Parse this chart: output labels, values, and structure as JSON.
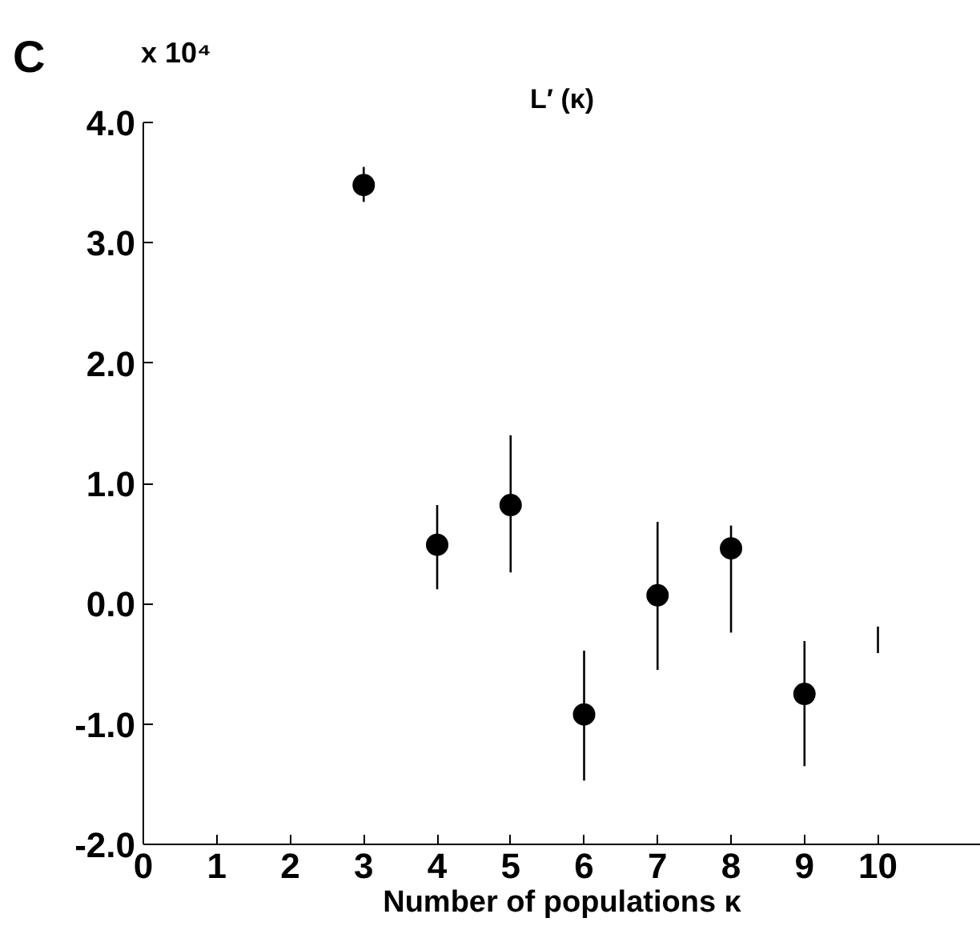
{
  "chart_data": {
    "type": "scatter",
    "title": "L′ (κ)",
    "xlabel": "Number of populations κ",
    "annotations": [
      "C",
      "x 10⁴"
    ],
    "series": [
      {
        "color": "#000000",
        "x": [
          3,
          4,
          5,
          6,
          7,
          8,
          9
        ],
        "values": [
          3.48,
          0.49,
          0.82,
          -0.92,
          0.07,
          0.46,
          -0.75
        ],
        "errors": [
          [
            3.34,
            3.63
          ],
          [
            0.12,
            0.82
          ],
          [
            0.26,
            1.4
          ],
          [
            -1.47,
            -0.39
          ],
          [
            -0.55,
            0.68
          ],
          [
            -0.24,
            0.65
          ],
          [
            -1.35,
            -0.31
          ]
        ]
      },
      {
        "type": "line",
        "color": "#000000",
        "marker": "none",
        "x": [
          10,
          10
        ],
        "values": [
          -0.19,
          -0.41
        ]
      }
    ],
    "marker": "circle",
    "xlim": [
      0,
      11.4
    ],
    "ylim": [
      -2,
      4
    ],
    "xticks": [
      0,
      1,
      2,
      3,
      4,
      5,
      6,
      7,
      8,
      9,
      10
    ],
    "yticks": [
      {
        "value": -2,
        "label": "-2.0"
      },
      {
        "value": -1,
        "label": "-1.0"
      },
      {
        "value": 0,
        "label": "0.0"
      },
      {
        "value": 1,
        "label": "1.0"
      },
      {
        "value": 2,
        "label": "2.0"
      },
      {
        "value": 3,
        "label": "3.0"
      },
      {
        "value": 4,
        "label": "4.0"
      }
    ],
    "grid": false
  }
}
